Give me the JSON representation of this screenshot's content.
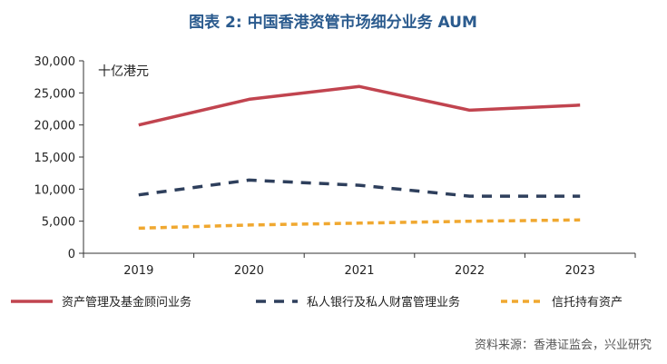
{
  "chart_data": {
    "type": "line",
    "title": "图表 2:  中国香港资管市场细分业务 AUM",
    "unit_label": "十亿港元",
    "categories": [
      "2019",
      "2020",
      "2021",
      "2022",
      "2023"
    ],
    "ylim": [
      0,
      30000
    ],
    "yticks": [
      0,
      5000,
      10000,
      15000,
      20000,
      25000,
      30000
    ],
    "ytick_labels": [
      "0",
      "5,000",
      "10,000",
      "15,000",
      "20,000",
      "25,000",
      "30,000"
    ],
    "xlabel": "",
    "ylabel": "",
    "grid": false,
    "legend_position": "bottom",
    "series": [
      {
        "name": "资产管理及基金顾问业务",
        "values": [
          20000,
          24000,
          26000,
          22300,
          23100
        ],
        "color": "#c1444f",
        "style": "solid"
      },
      {
        "name": "私人银行及私人财富管理业务",
        "values": [
          9100,
          11400,
          10600,
          8900,
          8900
        ],
        "color": "#2e3f5c",
        "style": "dashed"
      },
      {
        "name": "信托持有资产",
        "values": [
          3900,
          4400,
          4700,
          5000,
          5200
        ],
        "color": "#f0a830",
        "style": "dashed-short"
      }
    ],
    "source": "资料来源：香港证监会，兴业研究"
  }
}
